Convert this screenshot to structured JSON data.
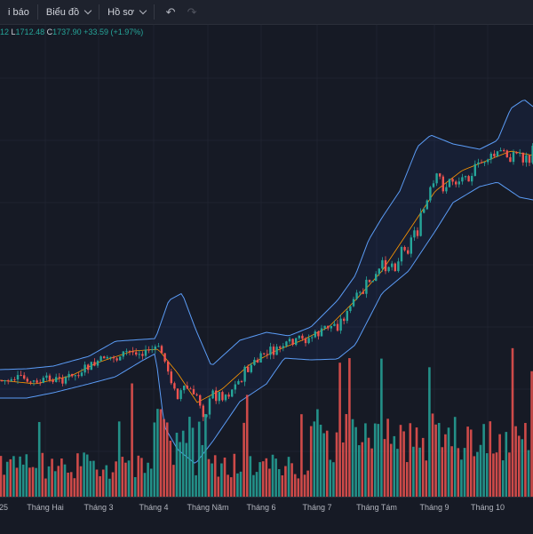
{
  "toolbar": {
    "alerts_label": "i báo",
    "chart_menu_label": "Biểu đồ",
    "profile_menu_label": "Hồ sơ",
    "undo_icon": "undo-icon",
    "redo_icon": "redo-icon"
  },
  "ohlc": {
    "partial_prev": "12",
    "low_key": "L",
    "low": "1712.48",
    "close_key": "C",
    "close": "1737.90",
    "change": "+33.59 (+1.97%)"
  },
  "colors": {
    "background": "#161a25",
    "up": "#26a69a",
    "down": "#ef5350",
    "band": "#5b9cf6",
    "basis": "#ff9800"
  },
  "chart_data": {
    "type": "candlestick",
    "indicator": "Bollinger Bands",
    "x_tick_labels": [
      "25",
      "Tháng Hai",
      "Tháng 3",
      "Tháng 4",
      "Tháng Năm",
      "Tháng 6",
      "Tháng 7",
      "Tháng Tám",
      "Tháng 9",
      "Tháng 10"
    ],
    "last_bar": {
      "low": 1712.48,
      "close": 1737.9,
      "change": 33.59,
      "change_pct": 1.97
    }
  }
}
